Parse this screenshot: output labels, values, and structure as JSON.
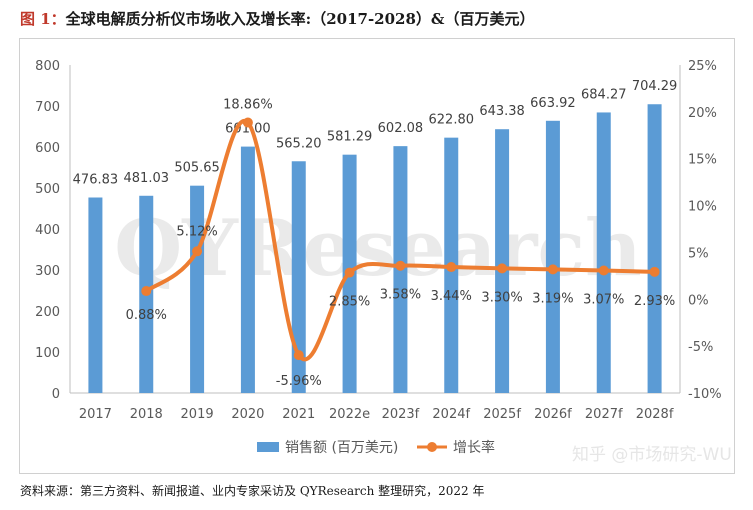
{
  "header": {
    "figure_label": "图 1：",
    "title": "全球电解质分析仪市场收入及增长率:（2017-2028）&（百万美元）"
  },
  "footer": {
    "source": "资料来源：第三方资料、新闻报道、业内专家采访及 QYResearch 整理研究，2022 年"
  },
  "watermarks": {
    "center": "QYResearch",
    "corner": "知乎 @市场研究-WU"
  },
  "colors": {
    "bar": "#5b9bd5",
    "line": "#ed7d31"
  },
  "chart_data": {
    "type": "bar",
    "categories": [
      "2017",
      "2018",
      "2019",
      "2020",
      "2021",
      "2022e",
      "2023f",
      "2024f",
      "2025f",
      "2026f",
      "2027f",
      "2028f"
    ],
    "series": [
      {
        "name": "销售额 (百万美元)",
        "type": "bar",
        "axis": "left",
        "values": [
          476.83,
          481.03,
          505.65,
          601.0,
          565.2,
          581.29,
          602.08,
          622.8,
          643.38,
          663.92,
          684.27,
          704.29
        ],
        "labels": [
          "476.83",
          "481.03",
          "505.65",
          "601.00",
          "565.20",
          "581.29",
          "602.08",
          "622.80",
          "643.38",
          "663.92",
          "684.27",
          "704.29"
        ]
      },
      {
        "name": "增长率",
        "type": "line",
        "axis": "right",
        "values": [
          null,
          0.88,
          5.12,
          18.86,
          -5.96,
          2.85,
          3.58,
          3.44,
          3.3,
          3.19,
          3.07,
          2.93
        ],
        "labels": [
          null,
          "0.88%",
          "5.12%",
          "18.86%",
          "-5.96%",
          "2.85%",
          "3.58%",
          "3.44%",
          "3.30%",
          "3.19%",
          "3.07%",
          "2.93%"
        ]
      }
    ],
    "y_left": {
      "ylim": [
        0,
        800
      ],
      "ticks": [
        "0",
        "100",
        "200",
        "300",
        "400",
        "500",
        "600",
        "700",
        "800"
      ]
    },
    "y_right": {
      "ylim": [
        -10,
        25
      ],
      "ticks": [
        "-10%",
        "-5%",
        "0%",
        "5%",
        "10%",
        "15%",
        "20%",
        "25%"
      ]
    },
    "grid": false,
    "legend_position": "bottom"
  }
}
